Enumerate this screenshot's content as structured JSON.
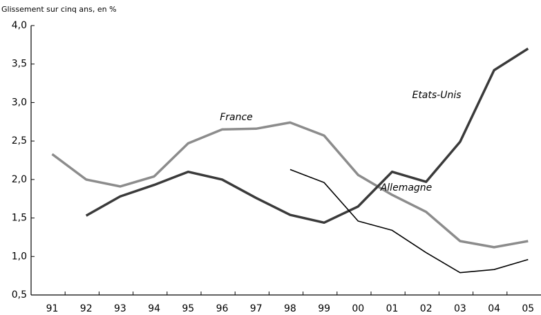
{
  "chart_data": {
    "type": "line",
    "y_label": "Glissement sur cinq ans, en %",
    "categories": [
      "91",
      "92",
      "93",
      "94",
      "95",
      "96",
      "97",
      "98",
      "99",
      "00",
      "01",
      "02",
      "03",
      "04",
      "05"
    ],
    "series": [
      {
        "name": "France",
        "color": "#8c8c8c",
        "values": [
          2.33,
          2.0,
          1.91,
          2.04,
          2.47,
          2.65,
          2.66,
          2.74,
          2.57,
          2.06,
          1.8,
          1.58,
          1.2,
          1.12,
          1.2
        ]
      },
      {
        "name": "Etats-Unis",
        "color": "#3a3a3a",
        "values": [
          null,
          1.53,
          1.78,
          1.93,
          2.1,
          2.0,
          1.76,
          1.54,
          1.44,
          1.65,
          2.1,
          1.97,
          2.49,
          3.42,
          3.7
        ]
      },
      {
        "name": "Allemagne",
        "color": "#000000",
        "values": [
          null,
          null,
          null,
          null,
          null,
          null,
          null,
          2.13,
          1.96,
          1.46,
          1.34,
          1.05,
          0.79,
          0.83,
          0.96
        ]
      }
    ],
    "ylim": [
      0.5,
      4.0
    ],
    "yticks": [
      {
        "value": 0.5,
        "label": "0,5"
      },
      {
        "value": 1.0,
        "label": "1,0"
      },
      {
        "value": 1.5,
        "label": "1,5"
      },
      {
        "value": 2.0,
        "label": "2,0"
      },
      {
        "value": 2.5,
        "label": "2,5"
      },
      {
        "value": 3.0,
        "label": "3,0"
      },
      {
        "value": 3.5,
        "label": "3,5"
      },
      {
        "value": 4.0,
        "label": "4,0"
      }
    ],
    "grid": false
  }
}
